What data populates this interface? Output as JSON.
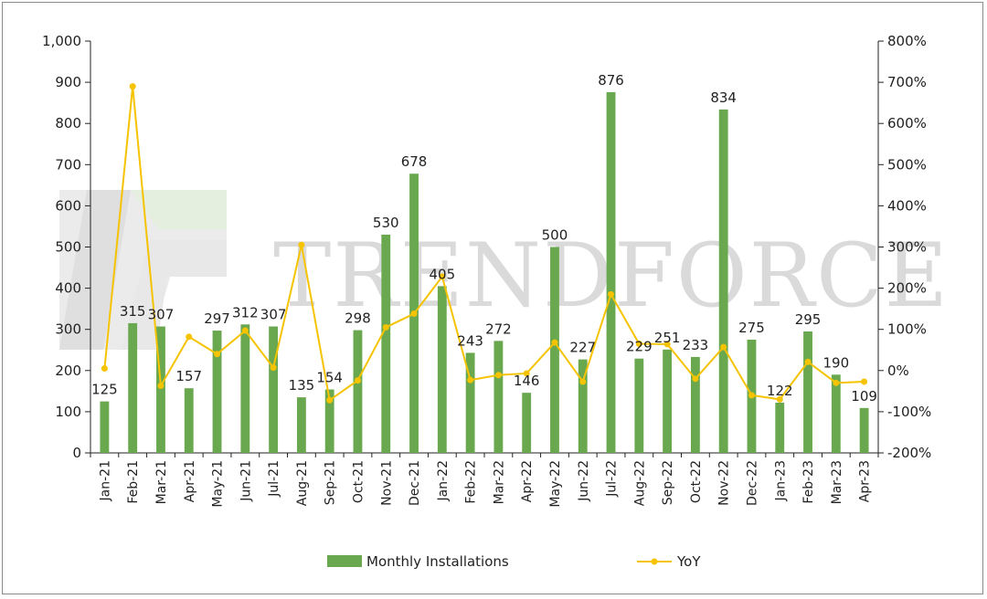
{
  "chart_data": {
    "type": "bar",
    "categories": [
      "Jan-21",
      "Feb-21",
      "Mar-21",
      "Apr-21",
      "May-21",
      "Jun-21",
      "Jul-21",
      "Aug-21",
      "Sep-21",
      "Oct-21",
      "Nov-21",
      "Dec-21",
      "Jan-22",
      "Feb-22",
      "Mar-22",
      "Apr-22",
      "May-22",
      "Jun-22",
      "Jul-22",
      "Aug-22",
      "Sep-22",
      "Oct-22",
      "Nov-22",
      "Dec-22",
      "Jan-23",
      "Feb-23",
      "Mar-23",
      "Apr-23"
    ],
    "series": [
      {
        "name": "Monthly Installations",
        "type": "bar",
        "axis": "left",
        "color": "#6aa84f",
        "values": [
          125,
          315,
          307,
          157,
          297,
          312,
          307,
          135,
          154,
          298,
          530,
          678,
          405,
          243,
          272,
          146,
          500,
          227,
          876,
          229,
          251,
          233,
          834,
          275,
          122,
          295,
          190,
          109
        ]
      },
      {
        "name": "YoY",
        "type": "line",
        "axis": "right",
        "color": "#f5c300",
        "unit": "%",
        "values": [
          5,
          690,
          -37,
          82,
          40,
          97,
          7,
          305,
          -72,
          -24,
          105,
          138,
          228,
          -23,
          -11,
          -7,
          68,
          -27,
          185,
          65,
          64,
          -20,
          57,
          -60,
          -70,
          21,
          -30,
          -27
        ]
      }
    ],
    "y_left": {
      "ylim": [
        0,
        1000
      ],
      "ticks": [
        "0",
        "100",
        "200",
        "300",
        "400",
        "500",
        "600",
        "700",
        "800",
        "900",
        "1,000"
      ]
    },
    "y_right": {
      "ylim": [
        -200,
        800
      ],
      "ticks": [
        "-200%",
        "-100%",
        "0%",
        "100%",
        "200%",
        "300%",
        "400%",
        "500%",
        "600%",
        "700%",
        "800%"
      ]
    },
    "grid": false,
    "legend": "bottom",
    "watermark": "TRENDFORCE"
  }
}
